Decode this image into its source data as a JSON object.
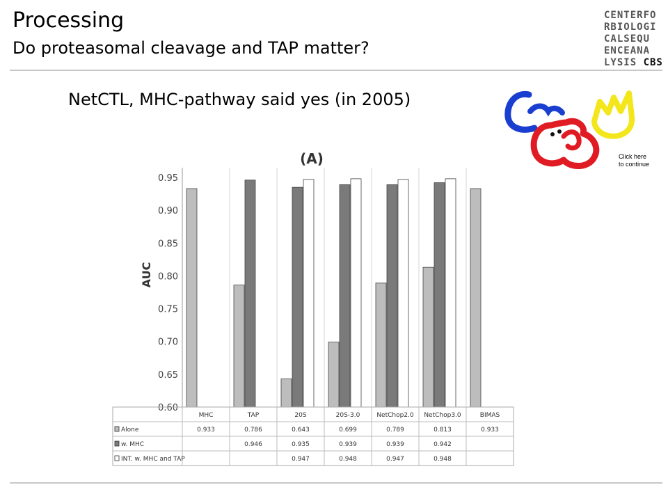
{
  "slide": {
    "title": "Processing",
    "subtitle": "Do proteasomal cleavage and TAP matter?",
    "statement": "NetCTL, MHC-pathway said yes (in 2005)",
    "logo_lines": [
      "CENTERFO",
      "RBIOLOGI",
      "CALSEQU",
      "ENCEANA"
    ],
    "logo_last_prefix": "LYSIS ",
    "logo_last_suffix": "CBS",
    "click_note_line1": "Click here",
    "click_note_line2": "to continue"
  },
  "colors": {
    "alone": "#bdbdbd",
    "w_mhc": "#7a7a7a",
    "int": "#ffffff",
    "mascot_blue": "#1a3fd0",
    "mascot_red": "#e01b24",
    "mascot_yellow": "#f3e61b"
  },
  "chart_data": {
    "type": "bar",
    "panel_label": "(A)",
    "ylabel": "AUC",
    "ylim": [
      0.6,
      0.95
    ],
    "yticks": [
      "0.95",
      "0.90",
      "0.85",
      "0.80",
      "0.75",
      "0.70",
      "0.65",
      "0.60"
    ],
    "categories": [
      "MHC",
      "TAP",
      "20S",
      "20S-3.0",
      "NetChop2.0",
      "NetChop3.0",
      "BIMAS"
    ],
    "series": [
      {
        "name": "Alone",
        "values": [
          0.933,
          0.786,
          0.643,
          0.699,
          0.789,
          0.813,
          0.933
        ]
      },
      {
        "name": "w. MHC",
        "values": [
          null,
          0.946,
          0.935,
          0.939,
          0.939,
          0.942,
          null
        ]
      },
      {
        "name": "INT. w. MHC and TAP",
        "values": [
          null,
          null,
          0.947,
          0.948,
          0.947,
          0.948,
          null
        ]
      }
    ]
  }
}
